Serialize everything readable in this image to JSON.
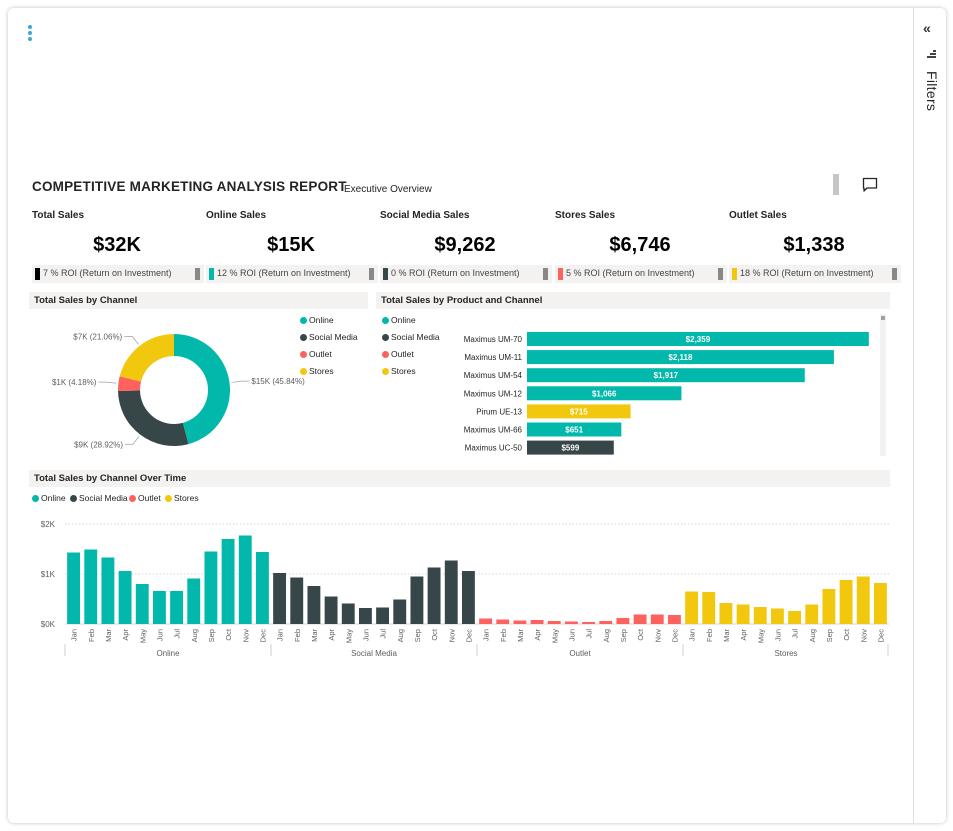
{
  "colors": {
    "online": "#01b8aa",
    "social": "#374649",
    "outlet": "#fd625e",
    "stores": "#f2c80f"
  },
  "menu": {
    "icon": "more-vertical-icon"
  },
  "filters": {
    "label": "Filters",
    "collapse_icon": "«"
  },
  "report": {
    "title": "COMPETITIVE MARKETING ANALYSIS REPORT",
    "subtitle": "Executive Overview"
  },
  "kpis": [
    {
      "label": "Total Sales",
      "value": "$32K",
      "roi": "7 % ROI (Return on Investment)",
      "marker_color": "#000000"
    },
    {
      "label": "Online Sales",
      "value": "$15K",
      "roi": "12 % ROI (Return on Investment)",
      "marker_color": "#01b8aa"
    },
    {
      "label": "Social Media Sales",
      "value": "$9,262",
      "roi": "0 % ROI (Return on Investment)",
      "marker_color": "#374649"
    },
    {
      "label": "Stores Sales",
      "value": "$6,746",
      "roi": "5 % ROI (Return on Investment)",
      "marker_color": "#fd625e"
    },
    {
      "label": "Outlet Sales",
      "value": "$1,338",
      "roi": "18 % ROI (Return on Investment)",
      "marker_color": "#f2c80f"
    }
  ],
  "legend": [
    "Online",
    "Social Media",
    "Outlet",
    "Stores"
  ],
  "chart_data": [
    {
      "type": "pie",
      "title": "Total Sales by Channel",
      "donut": true,
      "categories": [
        "Online",
        "Social Media",
        "Outlet",
        "Stores"
      ],
      "values": [
        45.84,
        28.92,
        4.18,
        21.06
      ],
      "labels": [
        "$15K (45.84%)",
        "$9K (28.92%)",
        "$1K (4.18%)",
        "$7K (21.06%)"
      ]
    },
    {
      "type": "bar",
      "orientation": "horizontal",
      "title": "Total Sales by Product and Channel",
      "categories": [
        "Maximus UM-70",
        "Maximus UM-11",
        "Maximus UM-54",
        "Maximus UM-12",
        "Pirum UE-13",
        "Maximus UM-66",
        "Maximus UC-50"
      ],
      "values": [
        2359,
        2118,
        1917,
        1066,
        715,
        651,
        599
      ],
      "value_labels": [
        "$2,359",
        "$2,118",
        "$1,917",
        "$1,066",
        "$715",
        "$651",
        "$599"
      ],
      "channels": [
        "Online",
        "Online",
        "Online",
        "Online",
        "Stores",
        "Online",
        "Social Media"
      ],
      "xlim": [
        0,
        2450
      ]
    },
    {
      "type": "bar",
      "title": "Total Sales by Channel Over Time",
      "ylim": [
        0,
        2000
      ],
      "yticks": [
        "$0K",
        "$1K",
        "$2K"
      ],
      "months": [
        "Jan",
        "Feb",
        "Mar",
        "Apr",
        "May",
        "Jun",
        "Jul",
        "Aug",
        "Sep",
        "Oct",
        "Nov",
        "Dec"
      ],
      "series": [
        {
          "name": "Online",
          "values": [
            1430,
            1490,
            1330,
            1060,
            800,
            660,
            660,
            910,
            1450,
            1700,
            1770,
            1440
          ]
        },
        {
          "name": "Social Media",
          "values": [
            1020,
            930,
            760,
            550,
            410,
            320,
            330,
            490,
            950,
            1130,
            1270,
            1060
          ]
        },
        {
          "name": "Outlet",
          "values": [
            110,
            90,
            70,
            80,
            60,
            50,
            40,
            60,
            120,
            190,
            190,
            180
          ]
        },
        {
          "name": "Stores",
          "values": [
            650,
            640,
            420,
            390,
            340,
            310,
            260,
            390,
            700,
            880,
            950,
            820
          ]
        }
      ]
    }
  ]
}
